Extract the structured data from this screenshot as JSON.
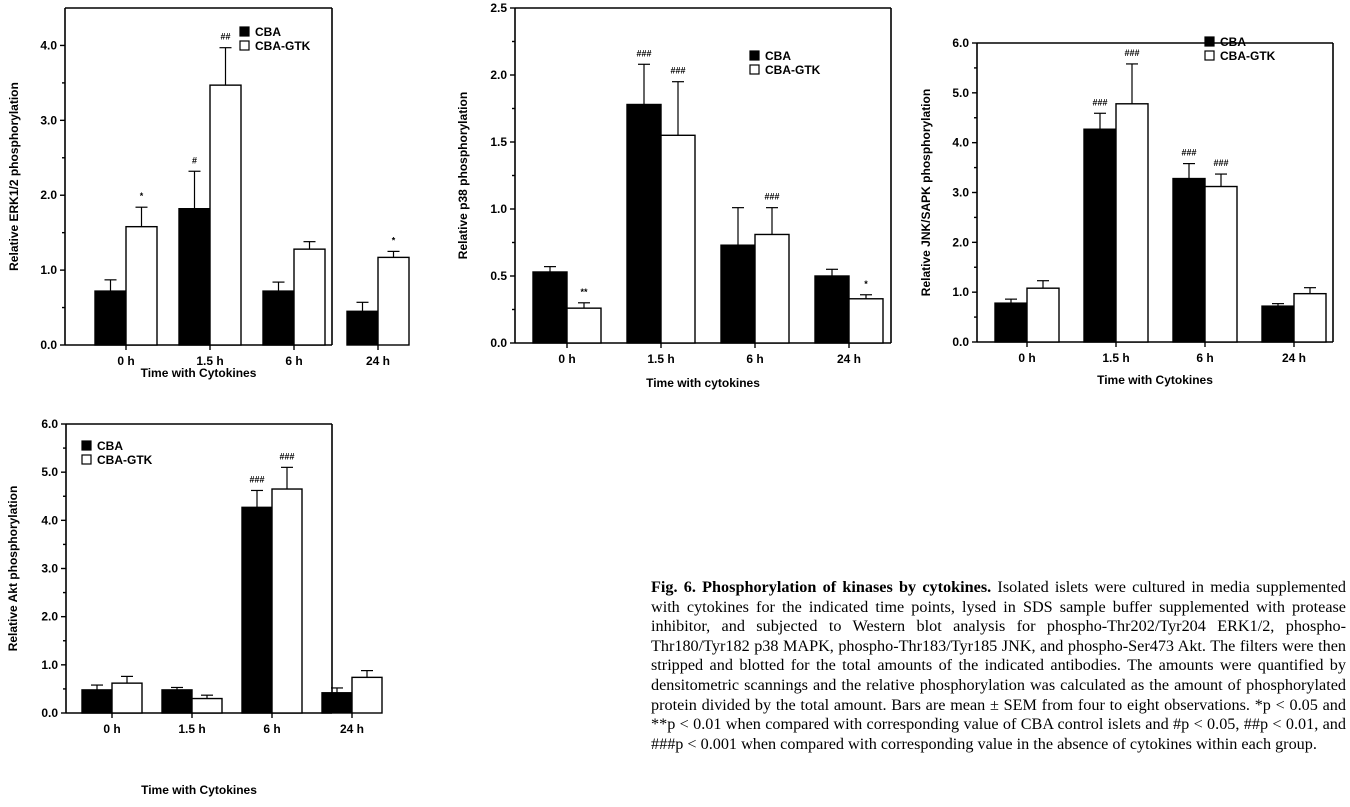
{
  "chart_data": [
    {
      "id": "erk",
      "type": "bar",
      "ylabel": "Relative ERK1/2 phosphorylation",
      "xlabel": "Time with Cytokines",
      "categories": [
        "0 h",
        "1.5 h",
        "6 h",
        "24 h"
      ],
      "ylim": [
        0,
        4.5
      ],
      "yticks": [
        "0.0",
        "1.0",
        "2.0",
        "3.0",
        "4.0"
      ],
      "legend_position": "top-right",
      "series": [
        {
          "name": "CBA",
          "color": "#000000",
          "values": [
            0.72,
            1.82,
            0.72,
            0.45
          ],
          "sem": [
            0.15,
            0.5,
            0.12,
            0.12
          ],
          "marks": [
            "",
            "#",
            "",
            ""
          ]
        },
        {
          "name": "CBA-GTK",
          "color": "#ffffff",
          "values": [
            1.58,
            3.47,
            1.28,
            1.17
          ],
          "sem": [
            0.26,
            0.5,
            0.1,
            0.08
          ],
          "marks": [
            "*",
            "##",
            "",
            "*"
          ]
        }
      ]
    },
    {
      "id": "p38",
      "type": "bar",
      "ylabel": "Relative p38 phosphorylation",
      "xlabel": "Time with cytokines",
      "categories": [
        "0 h",
        "1.5 h",
        "6 h",
        "24 h"
      ],
      "ylim": [
        0,
        2.5
      ],
      "yticks": [
        "0.0",
        "0.5",
        "1.0",
        "1.5",
        "2.0",
        "2.5"
      ],
      "legend_position": "top-right",
      "series": [
        {
          "name": "CBA",
          "color": "#000000",
          "values": [
            0.53,
            1.78,
            0.73,
            0.5
          ],
          "sem": [
            0.04,
            0.3,
            0.28,
            0.05
          ],
          "marks": [
            "",
            "###",
            "",
            ""
          ]
        },
        {
          "name": "CBA-GTK",
          "color": "#ffffff",
          "values": [
            0.26,
            1.55,
            0.81,
            0.33
          ],
          "sem": [
            0.04,
            0.4,
            0.2,
            0.03
          ],
          "marks": [
            "**",
            "###",
            "###",
            "*"
          ]
        }
      ]
    },
    {
      "id": "jnk",
      "type": "bar",
      "ylabel": "Relative JNK/SAPK phosphorylation",
      "xlabel": "Time with Cytokines",
      "categories": [
        "0 h",
        "1.5 h",
        "6 h",
        "24 h"
      ],
      "ylim": [
        0,
        6
      ],
      "yticks": [
        "0.0",
        "1.0",
        "2.0",
        "3.0",
        "4.0",
        "5.0",
        "6.0"
      ],
      "legend_position": "top-right",
      "series": [
        {
          "name": "CBA",
          "color": "#000000",
          "values": [
            0.78,
            4.27,
            3.28,
            0.72
          ],
          "sem": [
            0.08,
            0.32,
            0.3,
            0.05
          ],
          "marks": [
            "",
            "###",
            "###",
            ""
          ]
        },
        {
          "name": "CBA-GTK",
          "color": "#ffffff",
          "values": [
            1.08,
            4.78,
            3.12,
            0.97
          ],
          "sem": [
            0.15,
            0.8,
            0.25,
            0.12
          ],
          "marks": [
            "",
            "###",
            "###",
            ""
          ]
        }
      ]
    },
    {
      "id": "akt",
      "type": "bar",
      "ylabel": "Relative Akt phosphorylation",
      "xlabel": "Time with Cytokines",
      "categories": [
        "0 h",
        "1.5 h",
        "6 h",
        "24 h"
      ],
      "ylim": [
        0,
        6
      ],
      "yticks": [
        "0.0",
        "1.0",
        "2.0",
        "3.0",
        "4.0",
        "5.0",
        "6.0"
      ],
      "legend_position": "top-left",
      "series": [
        {
          "name": "CBA",
          "color": "#000000",
          "values": [
            0.48,
            0.48,
            4.27,
            0.42
          ],
          "sem": [
            0.1,
            0.05,
            0.35,
            0.1
          ],
          "marks": [
            "",
            "",
            "###",
            ""
          ]
        },
        {
          "name": "CBA-GTK",
          "color": "#ffffff",
          "values": [
            0.62,
            0.3,
            4.65,
            0.74
          ],
          "sem": [
            0.14,
            0.07,
            0.45,
            0.14
          ],
          "marks": [
            "",
            "",
            "###",
            ""
          ]
        }
      ]
    }
  ],
  "caption": {
    "lead": "Fig. 6.   Phosphorylation of kinases by cytokines.",
    "body": " Isolated islets were cultured in media supplemented with cytokines for the indicated time points, lysed in SDS sample buffer supplemented with protease inhibitor, and subjected to Western blot analysis for phospho-Thr202/Tyr204 ERK1/2, phospho-Thr180/Tyr182 p38 MAPK, phospho-Thr183/Tyr185 JNK, and phospho-Ser473 Akt. The filters were then stripped and blotted for the total amounts of the indicated antibodies. The amounts were quantified by densitometric scannings and the relative phosphorylation was calculated as the amount of phosphorylated protein divided by the total amount. Bars are mean ± SEM from four to eight observations. *p < 0.05 and **p < 0.01 when compared with corresponding value of CBA control islets and #p < 0.05, ##p < 0.01, and ###p < 0.001 when compared with corresponding value in the absence of cytokines within each group."
  }
}
